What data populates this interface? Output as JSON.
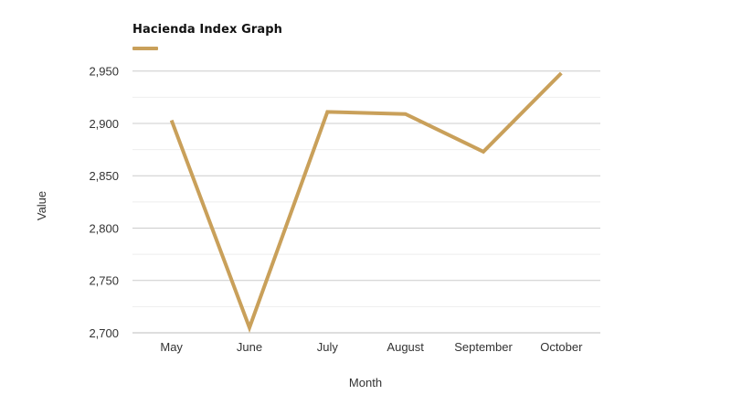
{
  "chart_data": {
    "type": "line",
    "categories": [
      "May",
      "June",
      "July",
      "August",
      "September",
      "October"
    ],
    "series": [
      {
        "name": "Hacienda Index Graph",
        "values": [
          2903,
          2705,
          2911,
          2909,
          2873,
          2948
        ],
        "color": "#c9a05a"
      }
    ],
    "xlabel": "Month",
    "ylabel": "Value",
    "ylim": [
      2700,
      2962
    ],
    "yticks": [
      2700,
      2750,
      2800,
      2850,
      2900,
      2950
    ],
    "ytick_labels": [
      "2,700",
      "2,750",
      "2,800",
      "2,850",
      "2,900",
      "2,950"
    ],
    "grid": true,
    "legend": "top-left"
  }
}
